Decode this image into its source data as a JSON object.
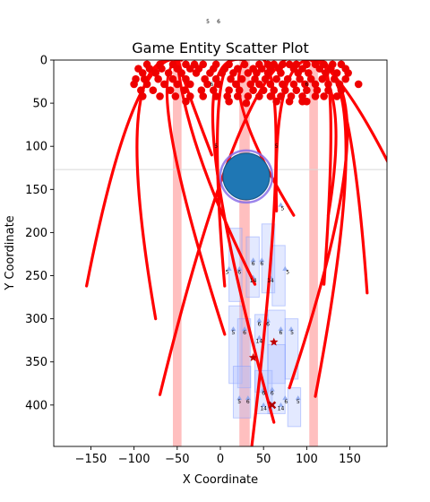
{
  "chart_data": {
    "type": "scatter",
    "title": "Game Entity Scatter Plot",
    "xlabel": "X Coordinate",
    "ylabel": "Y Coordinate",
    "xlim": [
      -193,
      193
    ],
    "ylim": [
      448,
      0
    ],
    "y_inverted": true,
    "grid": false,
    "x_ticks": [
      -150,
      -100,
      -50,
      0,
      50,
      100,
      150
    ],
    "y_ticks": [
      0,
      50,
      100,
      150,
      200,
      250,
      300,
      350,
      400
    ],
    "top_annotation": [
      "5",
      "6"
    ],
    "vertical_bands": [
      {
        "x": [
          -55,
          -45
        ],
        "color": "#ff8080"
      },
      {
        "x": [
          22,
          34
        ],
        "color": "#ff8080"
      },
      {
        "x": [
          103,
          113
        ],
        "color": "#ff8080"
      }
    ],
    "horizontal_line": {
      "y": 127,
      "color": "#d8d8d8"
    },
    "red_points": [
      [
        -85,
        5
      ],
      [
        -70,
        5
      ],
      [
        -55,
        5
      ],
      [
        -40,
        5
      ],
      [
        -30,
        5
      ],
      [
        -20,
        5
      ],
      [
        -5,
        5
      ],
      [
        10,
        5
      ],
      [
        28,
        5
      ],
      [
        45,
        5
      ],
      [
        55,
        5
      ],
      [
        62,
        5
      ],
      [
        72,
        5
      ],
      [
        80,
        5
      ],
      [
        88,
        5
      ],
      [
        100,
        5
      ],
      [
        110,
        5
      ],
      [
        120,
        5
      ],
      [
        130,
        5
      ],
      [
        140,
        5
      ],
      [
        -95,
        10
      ],
      [
        -82,
        10
      ],
      [
        -68,
        10
      ],
      [
        -50,
        10
      ],
      [
        -35,
        10
      ],
      [
        -25,
        10
      ],
      [
        -8,
        10
      ],
      [
        5,
        10
      ],
      [
        20,
        10
      ],
      [
        38,
        10
      ],
      [
        48,
        10
      ],
      [
        58,
        10
      ],
      [
        68,
        10
      ],
      [
        85,
        10
      ],
      [
        95,
        10
      ],
      [
        115,
        10
      ],
      [
        128,
        10
      ],
      [
        145,
        10
      ],
      [
        -90,
        15
      ],
      [
        -75,
        15
      ],
      [
        -60,
        15
      ],
      [
        -45,
        15
      ],
      [
        -28,
        15
      ],
      [
        -12,
        15
      ],
      [
        2,
        15
      ],
      [
        15,
        15
      ],
      [
        32,
        15
      ],
      [
        42,
        15
      ],
      [
        55,
        15
      ],
      [
        70,
        15
      ],
      [
        90,
        15
      ],
      [
        102,
        15
      ],
      [
        122,
        15
      ],
      [
        135,
        15
      ],
      [
        148,
        15
      ],
      [
        -98,
        22
      ],
      [
        -88,
        22
      ],
      [
        -72,
        22
      ],
      [
        -55,
        22
      ],
      [
        -40,
        22
      ],
      [
        -18,
        22
      ],
      [
        -5,
        22
      ],
      [
        12,
        22
      ],
      [
        25,
        22
      ],
      [
        40,
        22
      ],
      [
        52,
        22
      ],
      [
        65,
        22
      ],
      [
        78,
        22
      ],
      [
        92,
        22
      ],
      [
        105,
        22
      ],
      [
        118,
        22
      ],
      [
        132,
        22
      ],
      [
        145,
        22
      ],
      [
        -100,
        28
      ],
      [
        -85,
        28
      ],
      [
        -65,
        28
      ],
      [
        -50,
        28
      ],
      [
        -35,
        28
      ],
      [
        -15,
        28
      ],
      [
        -2,
        28
      ],
      [
        18,
        28
      ],
      [
        35,
        28
      ],
      [
        45,
        28
      ],
      [
        58,
        28
      ],
      [
        72,
        28
      ],
      [
        85,
        28
      ],
      [
        98,
        28
      ],
      [
        110,
        28
      ],
      [
        125,
        28
      ],
      [
        138,
        28
      ],
      [
        160,
        28
      ],
      [
        -92,
        35
      ],
      [
        -78,
        35
      ],
      [
        -58,
        35
      ],
      [
        -42,
        35
      ],
      [
        -22,
        35
      ],
      [
        -8,
        35
      ],
      [
        10,
        35
      ],
      [
        22,
        35
      ],
      [
        38,
        35
      ],
      [
        50,
        35
      ],
      [
        62,
        35
      ],
      [
        75,
        35
      ],
      [
        88,
        35
      ],
      [
        100,
        35
      ],
      [
        112,
        35
      ],
      [
        125,
        35
      ],
      [
        140,
        35
      ],
      [
        -90,
        42
      ],
      [
        -70,
        42
      ],
      [
        -52,
        42
      ],
      [
        -35,
        42
      ],
      [
        -20,
        42
      ],
      [
        -5,
        42
      ],
      [
        8,
        42
      ],
      [
        20,
        42
      ],
      [
        32,
        42
      ],
      [
        45,
        42
      ],
      [
        58,
        42
      ],
      [
        70,
        42
      ],
      [
        82,
        42
      ],
      [
        95,
        42
      ],
      [
        110,
        42
      ],
      [
        120,
        42
      ],
      [
        135,
        42
      ],
      [
        -40,
        48
      ],
      [
        10,
        48
      ],
      [
        30,
        50
      ],
      [
        65,
        48
      ],
      [
        80,
        48
      ],
      [
        95,
        48
      ],
      [
        100,
        48
      ]
    ],
    "red_arcs": [
      {
        "x0": -155,
        "y0": 262,
        "cx": -100,
        "cy": -20,
        "x1": -45,
        "y1": 0
      },
      {
        "x0": -75,
        "y0": 300,
        "cx": -130,
        "cy": -20,
        "x1": -45,
        "y1": 0
      },
      {
        "x0": -70,
        "y0": 388,
        "cx": 40,
        "cy": -60,
        "x1": 110,
        "y1": 0
      },
      {
        "x0": -10,
        "y0": 110,
        "cx": -60,
        "cy": -20,
        "x1": -45,
        "y1": 0
      },
      {
        "x0": 5,
        "y0": 318,
        "cx": -90,
        "cy": 20,
        "x1": -50,
        "y1": 0
      },
      {
        "x0": 5,
        "y0": 262,
        "cx": -20,
        "cy": -30,
        "x1": 28,
        "y1": 0
      },
      {
        "x0": 40,
        "y0": 260,
        "cx": -40,
        "cy": 100,
        "x1": -50,
        "y1": 0
      },
      {
        "x0": 30,
        "y0": 500,
        "cx": 100,
        "cy": -60,
        "x1": 28,
        "y1": 0
      },
      {
        "x0": 62,
        "y0": 420,
        "cx": -60,
        "cy": -20,
        "x1": 28,
        "y1": 0
      },
      {
        "x0": 65,
        "y0": 175,
        "cx": 60,
        "cy": -10,
        "x1": 110,
        "y1": 0
      },
      {
        "x0": 80,
        "y0": 380,
        "cx": 200,
        "cy": 20,
        "x1": 105,
        "y1": 0
      },
      {
        "x0": 85,
        "y0": 180,
        "cx": 0,
        "cy": 40,
        "x1": 28,
        "y1": 0
      },
      {
        "x0": 120,
        "y0": 260,
        "cx": 140,
        "cy": -20,
        "x1": 110,
        "y1": 0
      },
      {
        "x0": 125,
        "y0": 180,
        "cx": 150,
        "cy": 30,
        "x1": 105,
        "y1": 0
      },
      {
        "x0": 110,
        "y0": 390,
        "cx": 180,
        "cy": 20,
        "x1": 112,
        "y1": 0
      },
      {
        "x0": 170,
        "y0": 270,
        "cx": 150,
        "cy": -10,
        "x1": 110,
        "y1": 0
      },
      {
        "x0": 200,
        "y0": 130,
        "cx": 140,
        "cy": 10,
        "x1": 108,
        "y1": 0
      }
    ],
    "big_circle": {
      "x": 30,
      "y": 135,
      "r": 26,
      "fill": "#1f77b4",
      "edge": "#1a5a8a",
      "ring": "#8a6fe8"
    },
    "blue_tiles": [
      {
        "x": 10,
        "y": 195,
        "w": 15,
        "h": 85
      },
      {
        "x": 30,
        "y": 205,
        "w": 15,
        "h": 70
      },
      {
        "x": 48,
        "y": 190,
        "w": 15,
        "h": 80
      },
      {
        "x": 60,
        "y": 215,
        "w": 15,
        "h": 70
      },
      {
        "x": 10,
        "y": 285,
        "w": 15,
        "h": 90
      },
      {
        "x": 20,
        "y": 300,
        "w": 15,
        "h": 80
      },
      {
        "x": 40,
        "y": 295,
        "w": 15,
        "h": 90
      },
      {
        "x": 55,
        "y": 290,
        "w": 20,
        "h": 85
      },
      {
        "x": 75,
        "y": 300,
        "w": 15,
        "h": 70
      },
      {
        "x": 15,
        "y": 355,
        "w": 20,
        "h": 60
      },
      {
        "x": 40,
        "y": 360,
        "w": 20,
        "h": 50
      },
      {
        "x": 55,
        "y": 330,
        "w": 20,
        "h": 80
      },
      {
        "x": 78,
        "y": 380,
        "w": 15,
        "h": 45
      }
    ],
    "blue_markers": [
      [
        10,
        242
      ],
      [
        22,
        242
      ],
      [
        38,
        232
      ],
      [
        48,
        232
      ],
      [
        38,
        252
      ],
      [
        58,
        252
      ],
      [
        75,
        242
      ],
      [
        15,
        312
      ],
      [
        28,
        312
      ],
      [
        45,
        302
      ],
      [
        55,
        302
      ],
      [
        45,
        322
      ],
      [
        70,
        312
      ],
      [
        82,
        312
      ],
      [
        22,
        392
      ],
      [
        32,
        392
      ],
      [
        50,
        382
      ],
      [
        60,
        382
      ],
      [
        50,
        400
      ],
      [
        70,
        400
      ],
      [
        75,
        392
      ],
      [
        90,
        392
      ],
      [
        70,
        168
      ]
    ],
    "small_labels": [
      {
        "x": 8,
        "y": 248,
        "text": "5"
      },
      {
        "x": 22,
        "y": 248,
        "text": "6"
      },
      {
        "x": 38,
        "y": 238,
        "text": "6"
      },
      {
        "x": 48,
        "y": 238,
        "text": "6"
      },
      {
        "x": 38,
        "y": 258,
        "text": "14"
      },
      {
        "x": 58,
        "y": 258,
        "text": "14"
      },
      {
        "x": 78,
        "y": 248,
        "text": "5"
      },
      {
        "x": 15,
        "y": 318,
        "text": "5"
      },
      {
        "x": 28,
        "y": 318,
        "text": "6"
      },
      {
        "x": 45,
        "y": 308,
        "text": "6"
      },
      {
        "x": 55,
        "y": 308,
        "text": "6"
      },
      {
        "x": 45,
        "y": 328,
        "text": "14"
      },
      {
        "x": 70,
        "y": 318,
        "text": "6"
      },
      {
        "x": 83,
        "y": 318,
        "text": "5"
      },
      {
        "x": 22,
        "y": 398,
        "text": "5"
      },
      {
        "x": 32,
        "y": 398,
        "text": "6"
      },
      {
        "x": 50,
        "y": 388,
        "text": "6"
      },
      {
        "x": 60,
        "y": 388,
        "text": "6"
      },
      {
        "x": 50,
        "y": 406,
        "text": "14"
      },
      {
        "x": 70,
        "y": 406,
        "text": "14"
      },
      {
        "x": 76,
        "y": 398,
        "text": "6"
      },
      {
        "x": 90,
        "y": 398,
        "text": "5"
      },
      {
        "x": -5,
        "y": 102,
        "text": "5"
      },
      {
        "x": 65,
        "y": 102,
        "text": "5"
      },
      {
        "x": 72,
        "y": 174,
        "text": "5"
      },
      {
        "x": -10,
        "y": 30,
        "text": "6"
      },
      {
        "x": 100,
        "y": 30,
        "text": "6"
      }
    ],
    "stars": [
      [
        62,
        327
      ],
      [
        38,
        345
      ]
    ],
    "x_marker": [
      60,
      400
    ]
  }
}
